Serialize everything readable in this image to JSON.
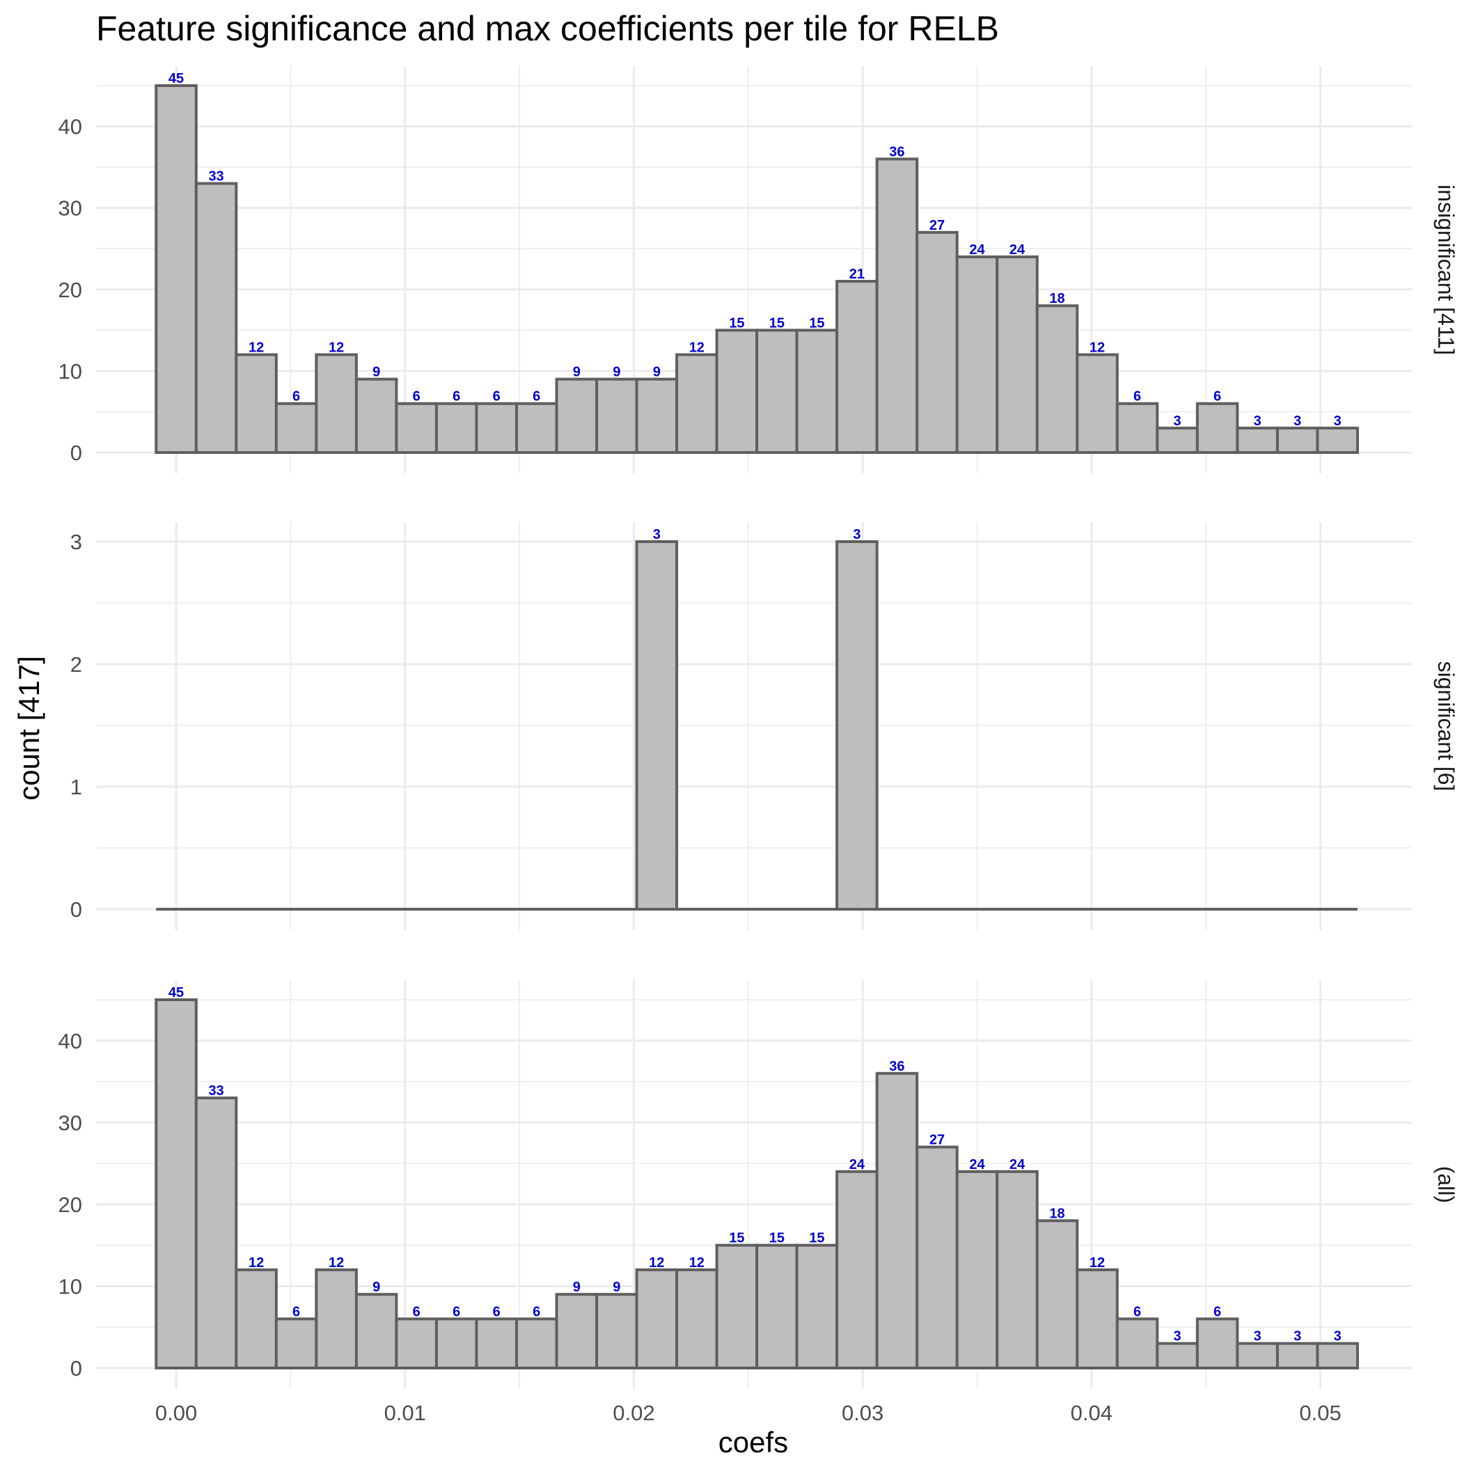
{
  "chart_data": {
    "type": "bar",
    "title": "Feature significance and max coefficients per tile for RELB",
    "xlabel": "coefs",
    "ylabel": "count [417]",
    "bin_width": 0.00175,
    "bin_centers": [
      0.0,
      0.00175,
      0.0035,
      0.00525,
      0.007,
      0.00875,
      0.0105,
      0.01225,
      0.014,
      0.01575,
      0.0175,
      0.01925,
      0.021,
      0.02275,
      0.0245,
      0.02625,
      0.028,
      0.02975,
      0.0315,
      0.03325,
      0.035,
      0.03675,
      0.0385,
      0.04025,
      0.042,
      0.04375,
      0.0455,
      0.04725,
      0.049,
      0.05075
    ],
    "x_ticks": [
      {
        "value": 0.0,
        "label": "0.00"
      },
      {
        "value": 0.01,
        "label": "0.01"
      },
      {
        "value": 0.02,
        "label": "0.02"
      },
      {
        "value": 0.03,
        "label": "0.03"
      },
      {
        "value": 0.04,
        "label": "0.04"
      },
      {
        "value": 0.05,
        "label": "0.05"
      }
    ],
    "xlim": [
      -0.0035,
      0.054
    ],
    "grid": true,
    "panels": [
      {
        "name": "insignificant [411]",
        "ylim": [
          0,
          45
        ],
        "y_ticks": [
          {
            "value": 0,
            "label": "0"
          },
          {
            "value": 10,
            "label": "10"
          },
          {
            "value": 20,
            "label": "20"
          },
          {
            "value": 30,
            "label": "30"
          },
          {
            "value": 40,
            "label": "40"
          }
        ],
        "minor_step": 5,
        "values": [
          45,
          33,
          12,
          6,
          12,
          9,
          6,
          6,
          6,
          6,
          9,
          9,
          9,
          12,
          15,
          15,
          15,
          21,
          36,
          27,
          24,
          24,
          18,
          12,
          6,
          3,
          6,
          3,
          3,
          3
        ]
      },
      {
        "name": "significant [6]",
        "ylim": [
          0,
          3
        ],
        "y_ticks": [
          {
            "value": 0,
            "label": "0"
          },
          {
            "value": 1,
            "label": "1"
          },
          {
            "value": 2,
            "label": "2"
          },
          {
            "value": 3,
            "label": "3"
          }
        ],
        "minor_step": 0.5,
        "values": [
          0,
          0,
          0,
          0,
          0,
          0,
          0,
          0,
          0,
          0,
          0,
          0,
          3,
          0,
          0,
          0,
          0,
          3,
          0,
          0,
          0,
          0,
          0,
          0,
          0,
          0,
          0,
          0,
          0,
          0
        ]
      },
      {
        "name": "(all)",
        "ylim": [
          0,
          45
        ],
        "y_ticks": [
          {
            "value": 0,
            "label": "0"
          },
          {
            "value": 10,
            "label": "10"
          },
          {
            "value": 20,
            "label": "20"
          },
          {
            "value": 30,
            "label": "30"
          },
          {
            "value": 40,
            "label": "40"
          }
        ],
        "minor_step": 5,
        "values": [
          45,
          33,
          12,
          6,
          12,
          9,
          6,
          6,
          6,
          6,
          9,
          9,
          12,
          12,
          15,
          15,
          15,
          24,
          36,
          27,
          24,
          24,
          18,
          12,
          6,
          3,
          6,
          3,
          3,
          3
        ]
      }
    ],
    "colors": {
      "bar_fill": "#bebebe",
      "bar_outline": "#5f5f5f",
      "count_label": "#0000cd",
      "grid": "#ebebeb"
    }
  }
}
